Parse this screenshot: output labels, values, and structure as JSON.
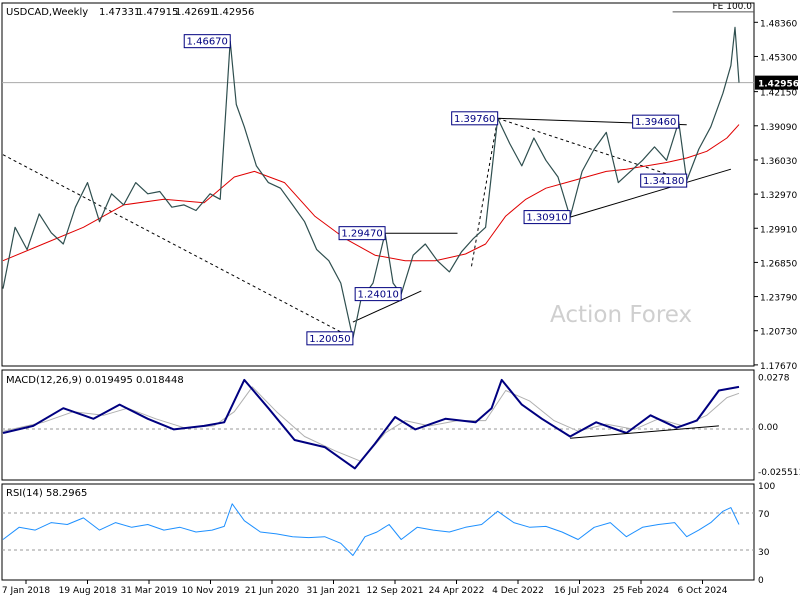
{
  "chart_data": {
    "type": "line",
    "symbol": "USDCAD",
    "timeframe": "Weekly",
    "header": {
      "label": "USDCAD,Weekly",
      "ohlc": [
        "1.47331",
        "1.47915",
        "1.42691",
        "1.42956"
      ]
    },
    "watermark": "Action Forex",
    "x_labels": [
      "7 Jan 2018",
      "19 Aug 2018",
      "31 Mar 2019",
      "10 Nov 2019",
      "21 Jun 2020",
      "31 Jan 2021",
      "12 Sep 2021",
      "24 Apr 2022",
      "4 Dec 2022",
      "16 Jul 2023",
      "25 Feb 2024",
      "6 Oct 2024"
    ],
    "price_panel": {
      "ylim": [
        1.1766,
        1.5
      ],
      "y_ticks": [
        "1.48360",
        "1.45300",
        "1.42150",
        "1.39090",
        "1.36030",
        "1.32970",
        "1.29910",
        "1.26850",
        "1.23790",
        "1.20730",
        "1.17670"
      ],
      "last_price": "1.42956",
      "close_series": [
        {
          "x": 0,
          "y": 1.245
        },
        {
          "x": 6,
          "y": 1.3
        },
        {
          "x": 12,
          "y": 1.28
        },
        {
          "x": 18,
          "y": 1.312
        },
        {
          "x": 24,
          "y": 1.295
        },
        {
          "x": 30,
          "y": 1.285
        },
        {
          "x": 36,
          "y": 1.318
        },
        {
          "x": 42,
          "y": 1.34
        },
        {
          "x": 48,
          "y": 1.305
        },
        {
          "x": 54,
          "y": 1.33
        },
        {
          "x": 60,
          "y": 1.32
        },
        {
          "x": 66,
          "y": 1.34
        },
        {
          "x": 72,
          "y": 1.33
        },
        {
          "x": 78,
          "y": 1.332
        },
        {
          "x": 84,
          "y": 1.318
        },
        {
          "x": 90,
          "y": 1.32
        },
        {
          "x": 96,
          "y": 1.315
        },
        {
          "x": 103,
          "y": 1.33
        },
        {
          "x": 108,
          "y": 1.325
        },
        {
          "x": 113,
          "y": 1.4667
        },
        {
          "x": 116,
          "y": 1.41
        },
        {
          "x": 120,
          "y": 1.39
        },
        {
          "x": 126,
          "y": 1.355
        },
        {
          "x": 132,
          "y": 1.34
        },
        {
          "x": 138,
          "y": 1.335
        },
        {
          "x": 144,
          "y": 1.32
        },
        {
          "x": 150,
          "y": 1.305
        },
        {
          "x": 156,
          "y": 1.28
        },
        {
          "x": 162,
          "y": 1.27
        },
        {
          "x": 168,
          "y": 1.25
        },
        {
          "x": 174,
          "y": 1.2005
        },
        {
          "x": 178,
          "y": 1.235
        },
        {
          "x": 184,
          "y": 1.25
        },
        {
          "x": 190,
          "y": 1.2947
        },
        {
          "x": 194,
          "y": 1.25
        },
        {
          "x": 198,
          "y": 1.2401
        },
        {
          "x": 204,
          "y": 1.275
        },
        {
          "x": 210,
          "y": 1.285
        },
        {
          "x": 216,
          "y": 1.27
        },
        {
          "x": 222,
          "y": 1.26
        },
        {
          "x": 228,
          "y": 1.278
        },
        {
          "x": 234,
          "y": 1.29
        },
        {
          "x": 240,
          "y": 1.3
        },
        {
          "x": 246,
          "y": 1.3976
        },
        {
          "x": 252,
          "y": 1.375
        },
        {
          "x": 258,
          "y": 1.355
        },
        {
          "x": 264,
          "y": 1.38
        },
        {
          "x": 270,
          "y": 1.36
        },
        {
          "x": 276,
          "y": 1.345
        },
        {
          "x": 282,
          "y": 1.3091
        },
        {
          "x": 288,
          "y": 1.35
        },
        {
          "x": 294,
          "y": 1.37
        },
        {
          "x": 300,
          "y": 1.385
        },
        {
          "x": 306,
          "y": 1.34
        },
        {
          "x": 312,
          "y": 1.35
        },
        {
          "x": 318,
          "y": 1.36
        },
        {
          "x": 324,
          "y": 1.372
        },
        {
          "x": 330,
          "y": 1.36
        },
        {
          "x": 336,
          "y": 1.3946
        },
        {
          "x": 340,
          "y": 1.3418
        },
        {
          "x": 346,
          "y": 1.37
        },
        {
          "x": 352,
          "y": 1.39
        },
        {
          "x": 358,
          "y": 1.42
        },
        {
          "x": 362,
          "y": 1.445
        },
        {
          "x": 364,
          "y": 1.479
        },
        {
          "x": 366,
          "y": 1.4296
        }
      ],
      "ma_series": [
        {
          "x": 0,
          "y": 1.27
        },
        {
          "x": 20,
          "y": 1.285
        },
        {
          "x": 40,
          "y": 1.3
        },
        {
          "x": 60,
          "y": 1.32
        },
        {
          "x": 80,
          "y": 1.325
        },
        {
          "x": 100,
          "y": 1.322
        },
        {
          "x": 115,
          "y": 1.345
        },
        {
          "x": 125,
          "y": 1.35
        },
        {
          "x": 140,
          "y": 1.34
        },
        {
          "x": 155,
          "y": 1.31
        },
        {
          "x": 170,
          "y": 1.29
        },
        {
          "x": 185,
          "y": 1.275
        },
        {
          "x": 200,
          "y": 1.27
        },
        {
          "x": 215,
          "y": 1.27
        },
        {
          "x": 230,
          "y": 1.276
        },
        {
          "x": 240,
          "y": 1.285
        },
        {
          "x": 250,
          "y": 1.31
        },
        {
          "x": 260,
          "y": 1.325
        },
        {
          "x": 270,
          "y": 1.335
        },
        {
          "x": 280,
          "y": 1.34
        },
        {
          "x": 290,
          "y": 1.345
        },
        {
          "x": 300,
          "y": 1.35
        },
        {
          "x": 310,
          "y": 1.352
        },
        {
          "x": 320,
          "y": 1.355
        },
        {
          "x": 330,
          "y": 1.358
        },
        {
          "x": 340,
          "y": 1.362
        },
        {
          "x": 350,
          "y": 1.368
        },
        {
          "x": 360,
          "y": 1.38
        },
        {
          "x": 366,
          "y": 1.392
        }
      ],
      "level_labels": [
        {
          "text": "1.46670",
          "x": 113,
          "y": 1.4667
        },
        {
          "text": "1.20050",
          "x": 174,
          "y": 1.2005
        },
        {
          "text": "1.29470",
          "x": 190,
          "y": 1.2947
        },
        {
          "text": "1.24010",
          "x": 198,
          "y": 1.2401
        },
        {
          "text": "1.39760",
          "x": 246,
          "y": 1.3976
        },
        {
          "text": "1.30910",
          "x": 282,
          "y": 1.3091
        },
        {
          "text": "1.39460",
          "x": 336,
          "y": 1.3946
        },
        {
          "text": "1.34180",
          "x": 340,
          "y": 1.3418
        }
      ],
      "trendlines": [
        {
          "style": "dashed",
          "points": [
            {
              "x": 0,
              "y": 1.365
            },
            {
              "x": 174,
              "y": 1.2005
            }
          ]
        },
        {
          "style": "dashed",
          "points": [
            {
              "x": 233,
              "y": 1.265
            },
            {
              "x": 246,
              "y": 1.3976
            }
          ]
        },
        {
          "style": "dashed",
          "points": [
            {
              "x": 246,
              "y": 1.3976
            },
            {
              "x": 340,
              "y": 1.3418
            }
          ]
        },
        {
          "style": "solid",
          "points": [
            {
              "x": 174,
              "y": 1.215
            },
            {
              "x": 208,
              "y": 1.243
            }
          ]
        },
        {
          "style": "solid",
          "points": [
            {
              "x": 190,
              "y": 1.2947
            },
            {
              "x": 226,
              "y": 1.2947
            }
          ]
        },
        {
          "style": "solid",
          "points": [
            {
              "x": 246,
              "y": 1.3976
            },
            {
              "x": 340,
              "y": 1.3918
            }
          ]
        },
        {
          "style": "solid",
          "points": [
            {
              "x": 282,
              "y": 1.3091
            },
            {
              "x": 362,
              "y": 1.352
            }
          ]
        }
      ],
      "fe_level": {
        "label": "FE 100.0",
        "value": 1.493,
        "from_x": 333
      }
    },
    "macd_panel": {
      "label": "MACD(12,26,9) 0.019495 0.018448",
      "ylim": [
        -0.03,
        0.031
      ],
      "y_ticks": [
        "0.0278",
        "0.00",
        "-0.025511"
      ],
      "macd_series": [
        {
          "x": 0,
          "y": -0.004
        },
        {
          "x": 15,
          "y": 0.0
        },
        {
          "x": 30,
          "y": 0.01
        },
        {
          "x": 45,
          "y": 0.004
        },
        {
          "x": 58,
          "y": 0.012
        },
        {
          "x": 72,
          "y": 0.004
        },
        {
          "x": 85,
          "y": -0.002
        },
        {
          "x": 100,
          "y": 0.0
        },
        {
          "x": 110,
          "y": 0.002
        },
        {
          "x": 120,
          "y": 0.026
        },
        {
          "x": 132,
          "y": 0.01
        },
        {
          "x": 145,
          "y": -0.008
        },
        {
          "x": 160,
          "y": -0.012
        },
        {
          "x": 175,
          "y": -0.024
        },
        {
          "x": 185,
          "y": -0.01
        },
        {
          "x": 195,
          "y": 0.005
        },
        {
          "x": 205,
          "y": -0.002
        },
        {
          "x": 220,
          "y": 0.004
        },
        {
          "x": 235,
          "y": 0.002
        },
        {
          "x": 243,
          "y": 0.01
        },
        {
          "x": 248,
          "y": 0.026
        },
        {
          "x": 258,
          "y": 0.012
        },
        {
          "x": 268,
          "y": 0.004
        },
        {
          "x": 282,
          "y": -0.006
        },
        {
          "x": 295,
          "y": 0.002
        },
        {
          "x": 310,
          "y": -0.004
        },
        {
          "x": 322,
          "y": 0.006
        },
        {
          "x": 335,
          "y": -0.001
        },
        {
          "x": 345,
          "y": 0.003
        },
        {
          "x": 356,
          "y": 0.02
        },
        {
          "x": 366,
          "y": 0.022
        }
      ],
      "signal_series": [
        {
          "x": 0,
          "y": -0.003
        },
        {
          "x": 20,
          "y": 0.002
        },
        {
          "x": 35,
          "y": 0.008
        },
        {
          "x": 50,
          "y": 0.006
        },
        {
          "x": 62,
          "y": 0.01
        },
        {
          "x": 76,
          "y": 0.004
        },
        {
          "x": 90,
          "y": -0.001
        },
        {
          "x": 105,
          "y": 0.0
        },
        {
          "x": 115,
          "y": 0.008
        },
        {
          "x": 124,
          "y": 0.022
        },
        {
          "x": 136,
          "y": 0.008
        },
        {
          "x": 150,
          "y": -0.006
        },
        {
          "x": 165,
          "y": -0.014
        },
        {
          "x": 178,
          "y": -0.02
        },
        {
          "x": 190,
          "y": -0.004
        },
        {
          "x": 200,
          "y": 0.003
        },
        {
          "x": 212,
          "y": 0.0
        },
        {
          "x": 226,
          "y": 0.003
        },
        {
          "x": 240,
          "y": 0.003
        },
        {
          "x": 250,
          "y": 0.02
        },
        {
          "x": 262,
          "y": 0.014
        },
        {
          "x": 274,
          "y": 0.003
        },
        {
          "x": 286,
          "y": -0.003
        },
        {
          "x": 300,
          "y": 0.001
        },
        {
          "x": 314,
          "y": -0.002
        },
        {
          "x": 326,
          "y": 0.004
        },
        {
          "x": 338,
          "y": 0.0
        },
        {
          "x": 350,
          "y": 0.006
        },
        {
          "x": 360,
          "y": 0.016
        },
        {
          "x": 366,
          "y": 0.0184
        }
      ],
      "trendline": {
        "points": [
          {
            "x": 282,
            "y": -0.007
          },
          {
            "x": 356,
            "y": 0.0
          }
        ]
      }
    },
    "rsi_panel": {
      "label": "RSI(14) 58.2965",
      "ylim": [
        0,
        100
      ],
      "y_ticks": [
        "100",
        "70",
        "30",
        "0"
      ],
      "rsi_series": [
        {
          "x": 0,
          "y": 42
        },
        {
          "x": 8,
          "y": 55
        },
        {
          "x": 16,
          "y": 52
        },
        {
          "x": 24,
          "y": 60
        },
        {
          "x": 32,
          "y": 58
        },
        {
          "x": 40,
          "y": 65
        },
        {
          "x": 48,
          "y": 52
        },
        {
          "x": 56,
          "y": 60
        },
        {
          "x": 64,
          "y": 55
        },
        {
          "x": 72,
          "y": 58
        },
        {
          "x": 80,
          "y": 52
        },
        {
          "x": 88,
          "y": 55
        },
        {
          "x": 96,
          "y": 50
        },
        {
          "x": 104,
          "y": 52
        },
        {
          "x": 110,
          "y": 56
        },
        {
          "x": 114,
          "y": 80
        },
        {
          "x": 120,
          "y": 62
        },
        {
          "x": 128,
          "y": 50
        },
        {
          "x": 136,
          "y": 48
        },
        {
          "x": 144,
          "y": 45
        },
        {
          "x": 152,
          "y": 44
        },
        {
          "x": 160,
          "y": 45
        },
        {
          "x": 168,
          "y": 38
        },
        {
          "x": 174,
          "y": 25
        },
        {
          "x": 180,
          "y": 45
        },
        {
          "x": 186,
          "y": 50
        },
        {
          "x": 192,
          "y": 58
        },
        {
          "x": 198,
          "y": 42
        },
        {
          "x": 206,
          "y": 55
        },
        {
          "x": 214,
          "y": 52
        },
        {
          "x": 222,
          "y": 50
        },
        {
          "x": 230,
          "y": 55
        },
        {
          "x": 238,
          "y": 58
        },
        {
          "x": 246,
          "y": 72
        },
        {
          "x": 254,
          "y": 60
        },
        {
          "x": 262,
          "y": 55
        },
        {
          "x": 270,
          "y": 56
        },
        {
          "x": 278,
          "y": 50
        },
        {
          "x": 286,
          "y": 42
        },
        {
          "x": 294,
          "y": 55
        },
        {
          "x": 302,
          "y": 60
        },
        {
          "x": 310,
          "y": 45
        },
        {
          "x": 318,
          "y": 55
        },
        {
          "x": 326,
          "y": 58
        },
        {
          "x": 334,
          "y": 60
        },
        {
          "x": 340,
          "y": 45
        },
        {
          "x": 346,
          "y": 52
        },
        {
          "x": 352,
          "y": 60
        },
        {
          "x": 358,
          "y": 72
        },
        {
          "x": 362,
          "y": 76
        },
        {
          "x": 366,
          "y": 58
        }
      ]
    },
    "x_range": [
      0,
      368
    ],
    "grid": false,
    "colors": {
      "background": "#ffffff",
      "price": "#2f4f4f",
      "moving_average": "#e00000",
      "macd": "#000080",
      "signal": "#b0b0b0",
      "rsi": "#1e90ff",
      "label_box_text": "#000080",
      "current_price_box": "#000000"
    }
  }
}
